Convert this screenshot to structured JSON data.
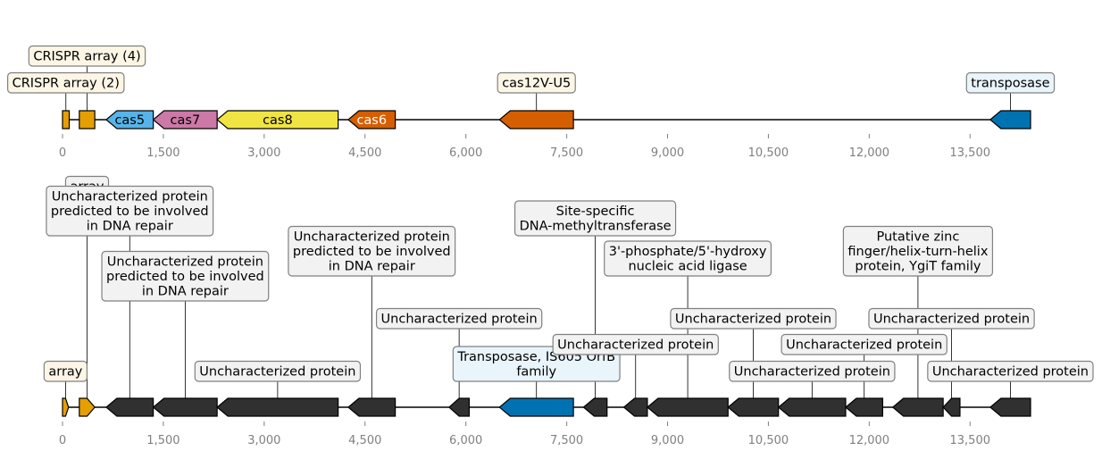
{
  "chart_data": [
    {
      "type": "gene-map",
      "axis": {
        "min": 0,
        "max": 14400,
        "ticks": [
          0,
          1500,
          3000,
          4500,
          6000,
          7500,
          9000,
          10500,
          12000,
          13500
        ]
      },
      "features": [
        {
          "start": 0,
          "end": 100,
          "strand": 0,
          "color": "#E69F00",
          "label": "CRISPR array (2)",
          "label_pos": 0,
          "label_color": "#000000"
        },
        {
          "start": 250,
          "end": 480,
          "strand": 0,
          "color": "#E69F00",
          "label": "CRISPR array (4)",
          "label_pos": 1,
          "label_color": "#000000"
        },
        {
          "start": 650,
          "end": 1350,
          "strand": -1,
          "color": "#56B4E9",
          "label": "cas5",
          "label_inside": true,
          "label_color": "#000000"
        },
        {
          "start": 1350,
          "end": 2300,
          "strand": -1,
          "color": "#CC79A7",
          "label": "cas7",
          "label_inside": true,
          "label_color": "#000000"
        },
        {
          "start": 2300,
          "end": 4100,
          "strand": -1,
          "color": "#F0E442",
          "label": "cas8",
          "label_inside": true,
          "label_color": "#000000"
        },
        {
          "start": 4250,
          "end": 4950,
          "strand": -1,
          "color": "#D55E00",
          "label": "cas6",
          "label_inside": true,
          "label_color": "#ffffff"
        },
        {
          "start": 6500,
          "end": 7600,
          "strand": -1,
          "color": "#D55E00",
          "label": "cas12V-U5",
          "label_pos": 0,
          "label_color": "#000000"
        },
        {
          "start": 13800,
          "end": 14400,
          "strand": -1,
          "color": "#0072B2",
          "label": "transposase",
          "label_pos": 0,
          "label_color": "#000000"
        }
      ]
    },
    {
      "type": "gene-map",
      "axis": {
        "min": 0,
        "max": 14400,
        "ticks": [
          0,
          1500,
          3000,
          4500,
          6000,
          7500,
          9000,
          10500,
          12000,
          13500
        ]
      },
      "features": [
        {
          "start": 0,
          "end": 90,
          "strand": 1,
          "color": "#E69F00",
          "label": "array",
          "label_pos": 0
        },
        {
          "start": 250,
          "end": 480,
          "strand": 1,
          "color": "#E69F00",
          "label": "array",
          "label_pos": 6
        },
        {
          "start": 650,
          "end": 1350,
          "strand": -1,
          "color": "#303030",
          "label": "Uncharacterized protein predicted to be involved in DNA repair",
          "label_pos": 5
        },
        {
          "start": 1350,
          "end": 2300,
          "strand": -1,
          "color": "#303030",
          "label": "Uncharacterized protein predicted to be involved in DNA repair",
          "label_pos": 3
        },
        {
          "start": 2300,
          "end": 4100,
          "strand": -1,
          "color": "#303030",
          "label": "Uncharacterized protein",
          "label_pos": 0
        },
        {
          "start": 4250,
          "end": 4950,
          "strand": -1,
          "color": "#303030",
          "label": "Uncharacterized protein predicted to be involved in DNA repair",
          "label_pos": 4
        },
        {
          "start": 5750,
          "end": 6050,
          "strand": -1,
          "color": "#303030",
          "label": "Uncharacterized protein",
          "label_pos": 2
        },
        {
          "start": 6500,
          "end": 7600,
          "strand": -1,
          "color": "#0072B2",
          "label": "Transposase, IS605 OrfB family",
          "label_pos": 0
        },
        {
          "start": 7750,
          "end": 8100,
          "strand": -1,
          "color": "#303030",
          "label": "Site-specific DNA-methyltransferase",
          "label_pos": 5
        },
        {
          "start": 8350,
          "end": 8700,
          "strand": -1,
          "color": "#303030",
          "label": "Uncharacterized protein",
          "label_pos": 1
        },
        {
          "start": 8700,
          "end": 9900,
          "strand": -1,
          "color": "#303030",
          "label": "3'-phosphate/5'-hydroxy nucleic acid ligase",
          "label_pos": 4
        },
        {
          "start": 9900,
          "end": 10650,
          "strand": -1,
          "color": "#303030",
          "label": "Uncharacterized protein",
          "label_pos": 2
        },
        {
          "start": 10650,
          "end": 11650,
          "strand": -1,
          "color": "#303030",
          "label": "Uncharacterized protein",
          "label_pos": 0
        },
        {
          "start": 11650,
          "end": 12200,
          "strand": -1,
          "color": "#303030",
          "label": "Uncharacterized protein",
          "label_pos": 1
        },
        {
          "start": 12350,
          "end": 13100,
          "strand": -1,
          "color": "#303030",
          "label": "Putative zinc finger/helix-turn-helix protein, YgiT family",
          "label_pos": 4
        },
        {
          "start": 13100,
          "end": 13350,
          "strand": -1,
          "color": "#303030",
          "label": "Uncharacterized protein",
          "label_pos": 2
        },
        {
          "start": 13800,
          "end": 14400,
          "strand": -1,
          "color": "#303030",
          "label": "Uncharacterized protein",
          "label_pos": 0
        }
      ]
    }
  ]
}
